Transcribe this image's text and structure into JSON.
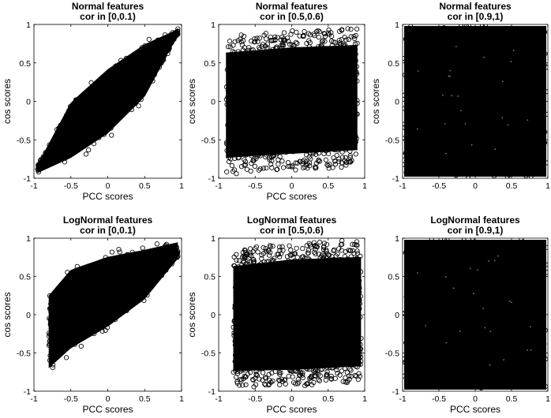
{
  "chart_data": [
    {
      "type": "scatter",
      "title": [
        "Normal features",
        "cor in [0,0.1)"
      ],
      "xlabel": "PCC scores",
      "ylabel": "cos scores",
      "xlim": [
        -1,
        1
      ],
      "ylim": [
        -1,
        1
      ],
      "xticks": [
        "-1",
        "-0.5",
        "0",
        "0.5",
        "1"
      ],
      "yticks": [
        "-1",
        "-0.5",
        "0",
        "0.5",
        "1"
      ],
      "marker": "circle",
      "pattern": "elongated diagonal cloud along y = x, cos spread ≈ ±0.35 around PCC",
      "envelope": {
        "cos_min_at_pcc": [
          [
            -0.95,
            -0.95
          ],
          [
            -0.5,
            -0.85
          ],
          [
            0,
            -0.55
          ],
          [
            0.5,
            -0.05
          ],
          [
            0.95,
            0.85
          ]
        ],
        "cos_max_at_pcc": [
          [
            -0.95,
            -0.8
          ],
          [
            -0.5,
            0.1
          ],
          [
            0,
            0.55
          ],
          [
            0.5,
            0.85
          ],
          [
            0.95,
            0.95
          ]
        ]
      }
    },
    {
      "type": "scatter",
      "title": [
        "Normal features",
        "cor in [0.5,0.6)"
      ],
      "xlabel": "PCC scores",
      "ylabel": "cos scores",
      "xlim": [
        -1,
        1
      ],
      "ylim": [
        -1,
        1
      ],
      "xticks": [
        "-1",
        "-0.5",
        "0",
        "0.5",
        "1"
      ],
      "yticks": [
        "-1",
        "-0.5",
        "0",
        "0.5",
        "1"
      ],
      "marker": "circle",
      "pattern": "dense slanted band filling x in [-0.9, 0.9], cos from about -0.95 to 0.95",
      "envelope": {
        "cos_min_at_pcc": [
          [
            -0.9,
            -0.95
          ],
          [
            0,
            -0.9
          ],
          [
            0.9,
            -0.85
          ]
        ],
        "cos_max_at_pcc": [
          [
            -0.9,
            0.85
          ],
          [
            0,
            0.92
          ],
          [
            0.9,
            0.95
          ]
        ]
      }
    },
    {
      "type": "scatter",
      "title": [
        "Normal features",
        "cor in [0.9,1)"
      ],
      "xlabel": "",
      "ylabel": "cos scores",
      "xlim": [
        -1,
        1
      ],
      "ylim": [
        -1,
        1
      ],
      "xticks": [
        "-1",
        "-0.5",
        "0",
        "0.5",
        "1"
      ],
      "yticks": [
        "-1",
        "-0.5",
        "0",
        "0.5",
        "1"
      ],
      "marker": "circle",
      "pattern": "points fill the whole square [-1,1] x [-1,1]"
    },
    {
      "type": "scatter",
      "title": [
        "LogNormal features",
        "cor in [0,0.1)"
      ],
      "xlabel": "PCC scores",
      "ylabel": "cos scores",
      "xlim": [
        -1,
        1
      ],
      "ylim": [
        -1,
        1
      ],
      "xticks": [
        "-1",
        "-0.5",
        "0",
        "0.5",
        "1"
      ],
      "yticks": [
        "-1",
        "-0.5",
        "0",
        "0.5",
        "1"
      ],
      "marker": "circle",
      "pattern": "diagonal cloud skewed upward, wider spread than normal case",
      "envelope": {
        "cos_min_at_pcc": [
          [
            -0.8,
            -0.85
          ],
          [
            -0.5,
            -0.6
          ],
          [
            0,
            -0.3
          ],
          [
            0.5,
            0.1
          ],
          [
            0.95,
            0.7
          ]
        ],
        "cos_max_at_pcc": [
          [
            -0.8,
            0.4
          ],
          [
            -0.5,
            0.75
          ],
          [
            0,
            0.9
          ],
          [
            0.5,
            0.95
          ],
          [
            0.95,
            0.98
          ]
        ]
      }
    },
    {
      "type": "scatter",
      "title": [
        "LogNormal features",
        "cor in [0.5,0.6)"
      ],
      "xlabel": "PCC scores",
      "ylabel": "cos scores",
      "xlim": [
        -1,
        1
      ],
      "ylim": [
        -1,
        1
      ],
      "xticks": [
        "-1",
        "-0.5",
        "0",
        "0.5",
        "1"
      ],
      "yticks": [
        "-1",
        "-0.5",
        "0",
        "0.5",
        "1"
      ],
      "marker": "circle",
      "pattern": "dense band from x = -0.8 to 0.95, cos from about -0.95 to 0.98",
      "envelope": {
        "cos_min_at_pcc": [
          [
            -0.8,
            -0.95
          ],
          [
            0,
            -0.95
          ],
          [
            0.95,
            -0.9
          ]
        ],
        "cos_max_at_pcc": [
          [
            -0.8,
            0.85
          ],
          [
            0,
            0.95
          ],
          [
            0.95,
            0.98
          ]
        ]
      }
    },
    {
      "type": "scatter",
      "title": [
        "LogNormal features",
        "cor in [0.9,1)"
      ],
      "xlabel": "PCC scores",
      "ylabel": "",
      "xlim": [
        -1,
        1
      ],
      "ylim": [
        -1,
        1
      ],
      "xticks": [
        "-1",
        "-0.5",
        "0",
        "0.5",
        "1"
      ],
      "yticks": [
        "-1",
        "-0.5",
        "0",
        "0.5",
        "1"
      ],
      "marker": "circle",
      "pattern": "points fill the whole square [-1,1] x [-1,1]"
    }
  ]
}
